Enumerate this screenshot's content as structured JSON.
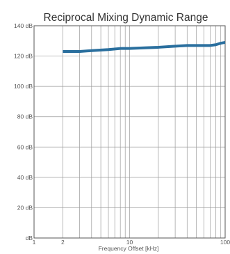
{
  "chart_data": {
    "type": "line",
    "title": "Reciprocal Mixing Dynamic Range",
    "xlabel": "Frequency Offset [kHz]",
    "ylabel": "",
    "x_scale": "log",
    "xlim": [
      1,
      100
    ],
    "ylim": [
      0,
      140
    ],
    "grid": true,
    "x_tick_labels": [
      "1",
      "2",
      "10",
      "100"
    ],
    "y_tick_labels": [
      "dB",
      "20 dB",
      "40 dB",
      "60 dB",
      "80 dB",
      "100 dB",
      "120 dB",
      "140 dB"
    ],
    "series": [
      {
        "color": "#2a6f9e",
        "x": [
          2,
          3,
          4,
          6,
          8,
          10,
          15,
          20,
          30,
          40,
          50,
          60,
          70,
          80,
          90,
          100
        ],
        "y": [
          123,
          123,
          123.6,
          124.3,
          125,
          125,
          125.5,
          125.8,
          126.5,
          127,
          127,
          127,
          127,
          127.5,
          128.5,
          129
        ]
      }
    ]
  }
}
